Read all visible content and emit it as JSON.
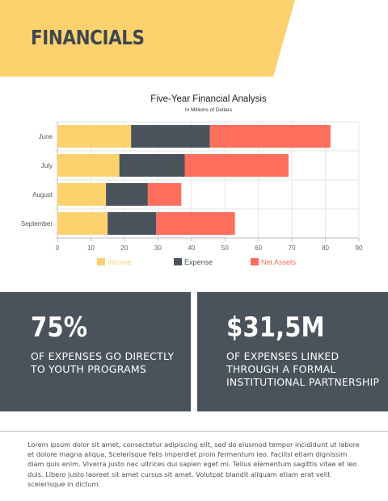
{
  "header": {
    "title": "FINANCIALS",
    "accent_color": "#fdd26e"
  },
  "chart_data": {
    "type": "bar",
    "orientation": "horizontal",
    "stacked": true,
    "title": "Five-Year Financial Analysis",
    "subtitle": "In Millions of Dollars",
    "categories": [
      "June",
      "July",
      "August",
      "September"
    ],
    "series": [
      {
        "name": "Income",
        "color": "#fdd26e",
        "values": [
          22,
          18.5,
          14.5,
          15
        ]
      },
      {
        "name": "Expense",
        "color": "#4a535b",
        "values": [
          23.5,
          19.5,
          12.5,
          14.5
        ]
      },
      {
        "name": "Net Assets",
        "color": "#fd6e5d",
        "values": [
          36,
          31,
          10,
          23.5
        ]
      }
    ],
    "xlim": [
      0,
      90
    ],
    "xticks": [
      "0",
      "10",
      "20",
      "30",
      "40",
      "50",
      "60",
      "70",
      "80",
      "90"
    ],
    "grid": true,
    "legend_position": "bottom"
  },
  "stats": [
    {
      "value": "75%",
      "description": "OF EXPENSES GO DIRECTLY TO YOUTH PROGRAMS"
    },
    {
      "value": "$31,5M",
      "description": "OF EXPENSES LINKED THROUGH A FORMAL INSTITUTIONAL PARTNERSHIP"
    }
  ],
  "stat_panel_color": "#4a535b",
  "body_text": "Lorem ipsum dolor sit amet, consectetur adipiscing elit, sed do eiusmod tempor incididunt ut labore et dolore magna aliqua. Scelerisque felis imperdiet proin fermentum leo. Facilisi etiam dignissim diam quis enim. Viverra justo nec ultrices dui sapien eget mi. Tellus elementum sagittis vitae et leo duis. Libero justo laoreet sit amet cursus sit amet. Volutpat blandit aliquam etiam erat velit scelerisque in dictum."
}
